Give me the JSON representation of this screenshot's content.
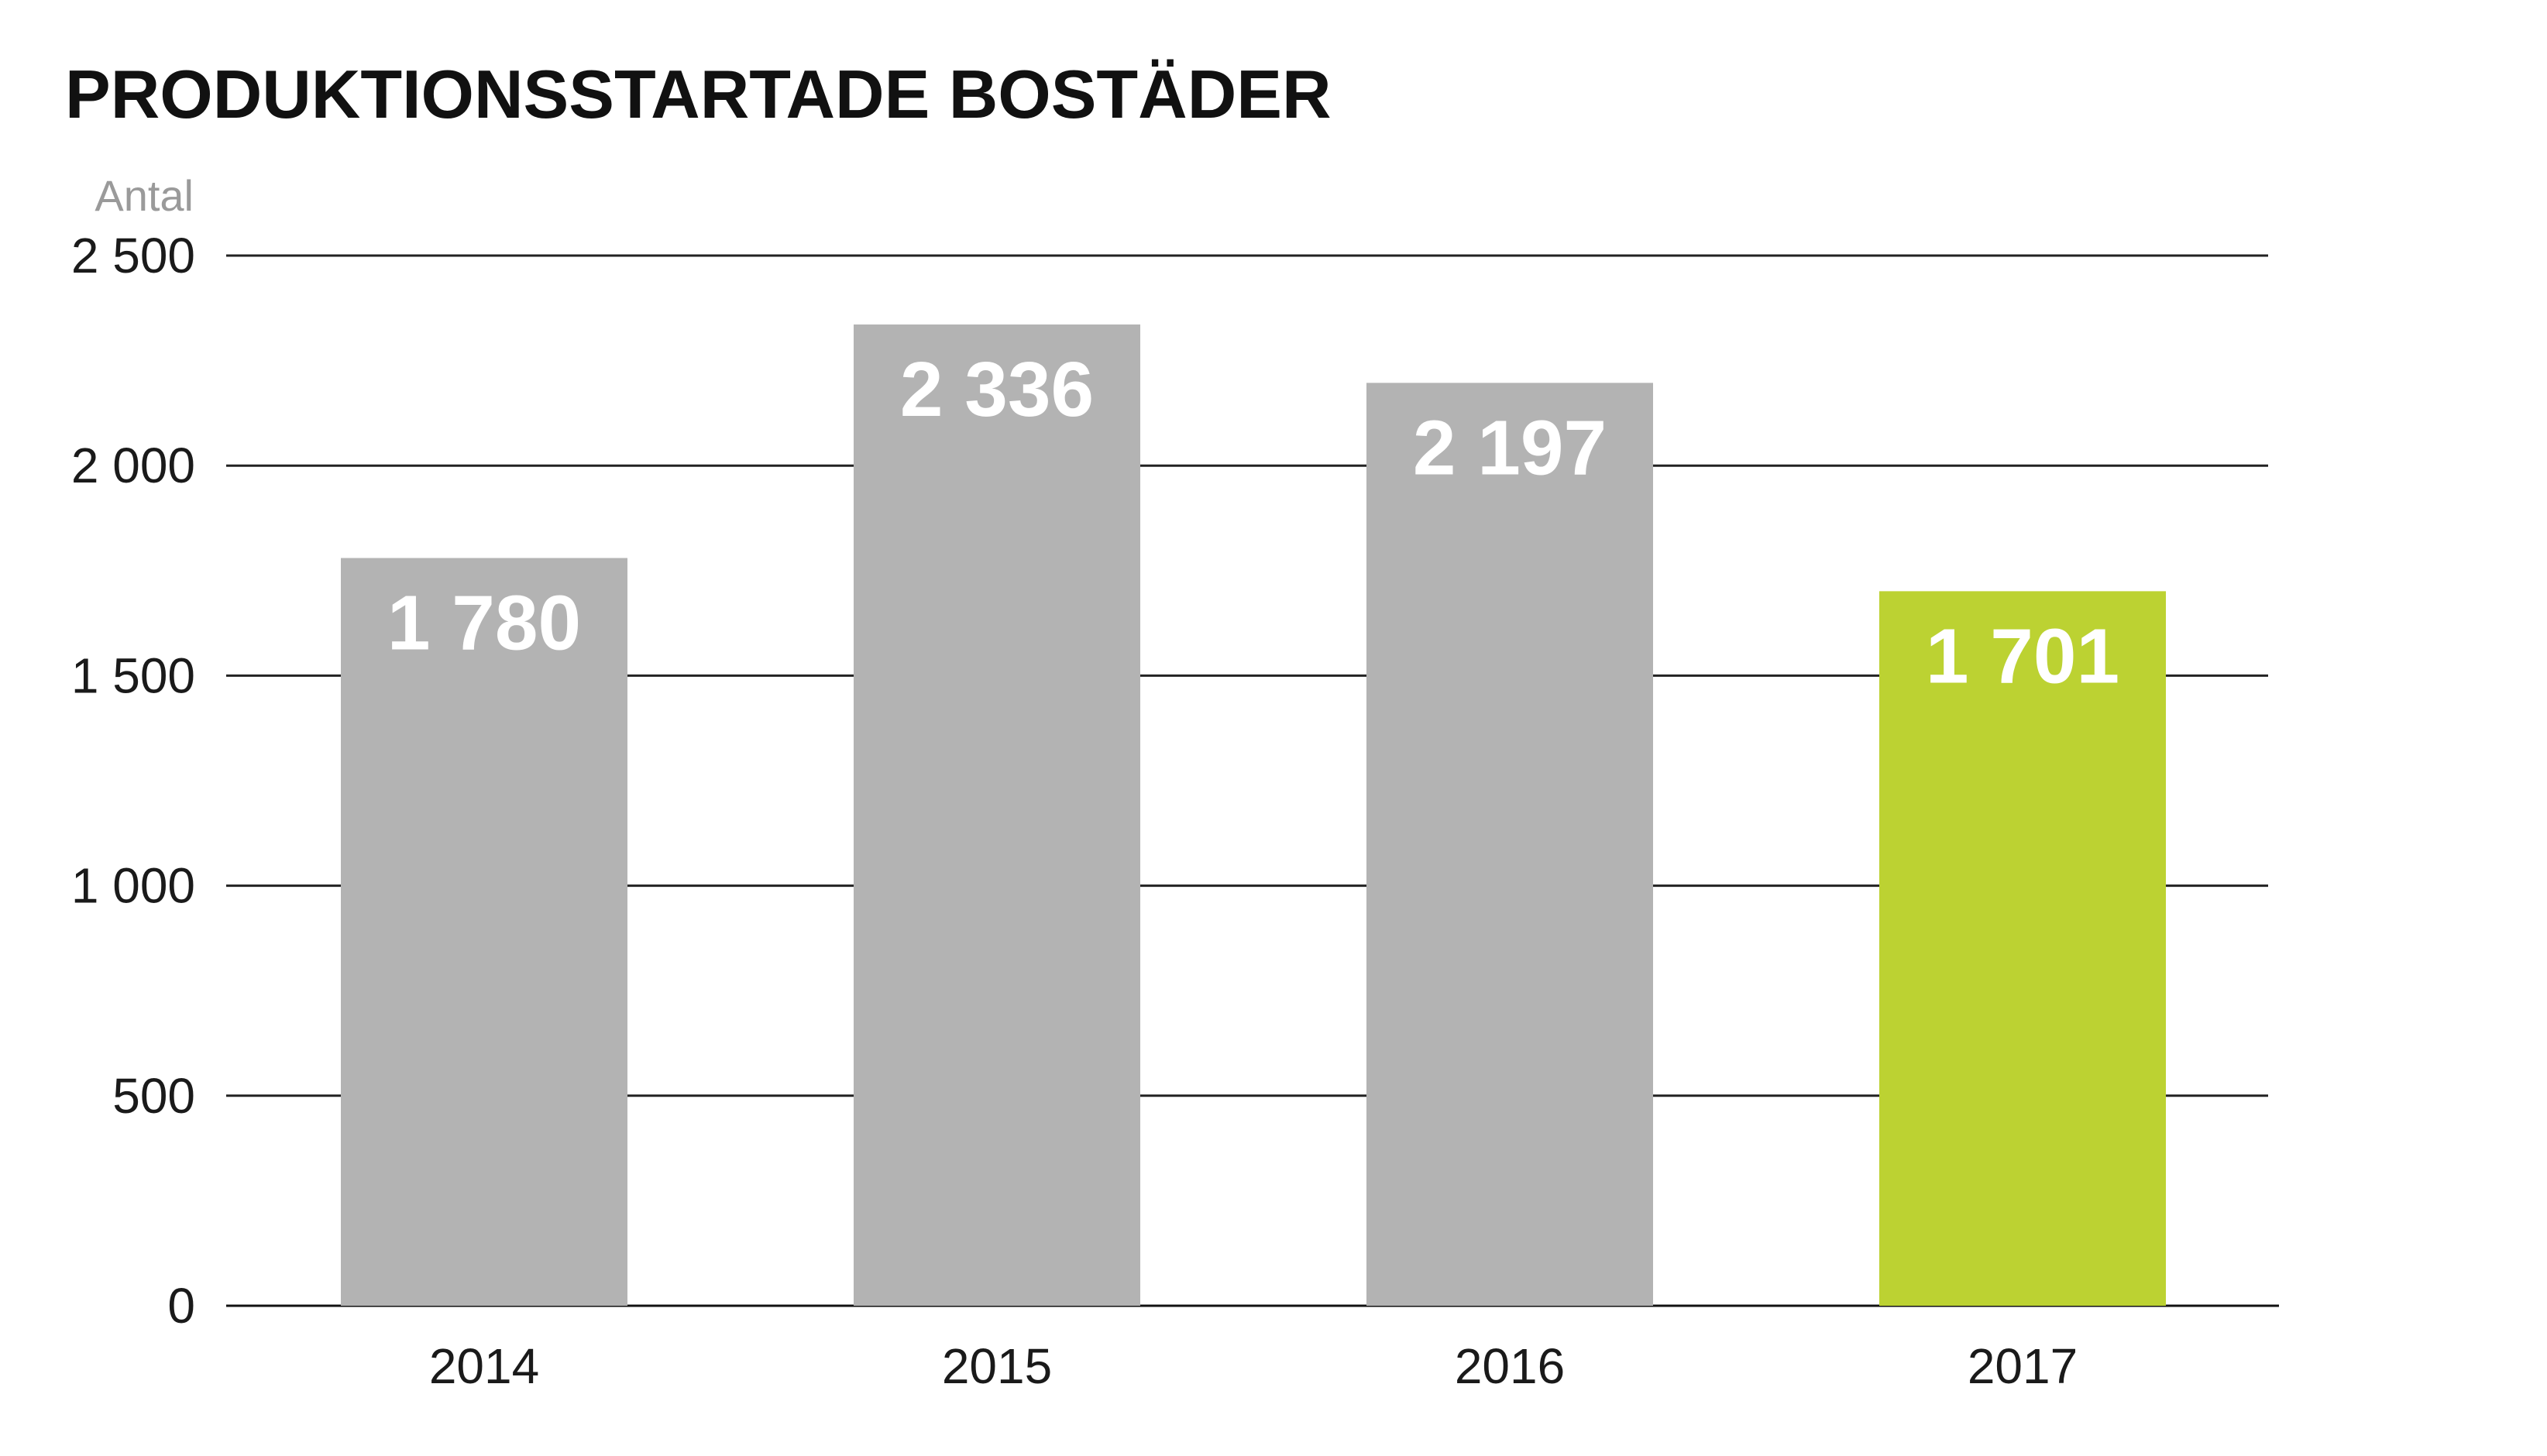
{
  "chart_data": {
    "type": "bar",
    "title": "PRODUKTIONSSTARTADE BOSTÄDER",
    "ylabel": "Antal",
    "xlabel": "",
    "categories": [
      "2014",
      "2015",
      "2016",
      "2017"
    ],
    "values": [
      1780,
      2336,
      2197,
      1701
    ],
    "value_labels": [
      "1 780",
      "2 336",
      "2 197",
      "1 701"
    ],
    "ylim": [
      0,
      2500
    ],
    "yticks": [
      0,
      500,
      1000,
      1500,
      2000,
      2500
    ],
    "ytick_labels": [
      "0",
      "500",
      "1 000",
      "1 500",
      "2 000",
      "2 500"
    ],
    "grid": true,
    "legend": "none",
    "bar_colors": [
      "#b3b3b3",
      "#b3b3b3",
      "#b3b3b3",
      "#bcd232"
    ]
  }
}
